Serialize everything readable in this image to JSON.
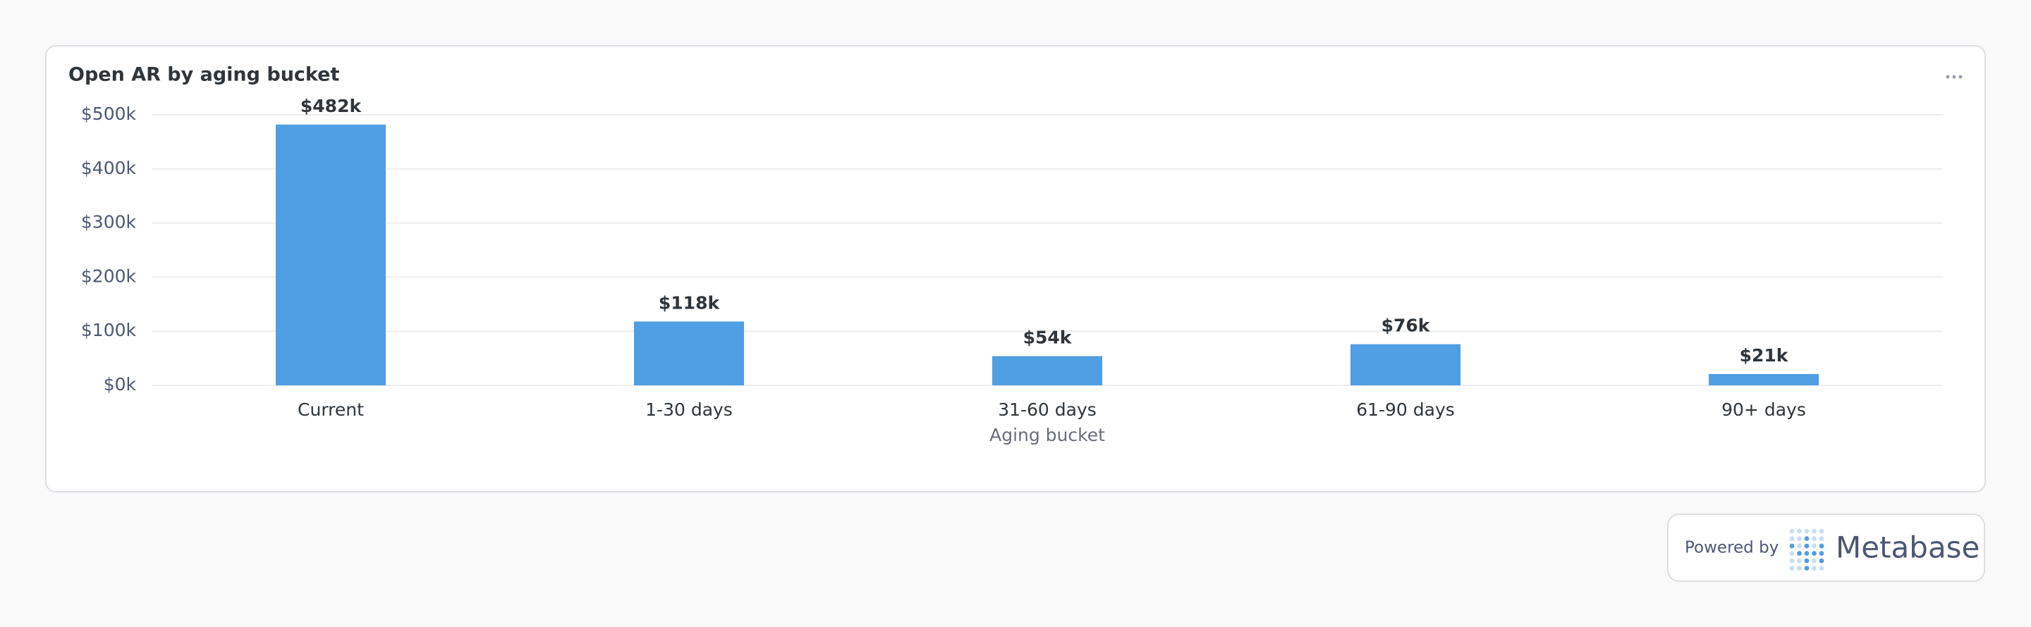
{
  "chart_data": {
    "type": "bar",
    "title": "Open AR by aging bucket",
    "categories": [
      "Current",
      "1-30 days",
      "31-60 days",
      "61-90 days",
      "90+ days"
    ],
    "values": [
      482000,
      118000,
      54000,
      76000,
      21000
    ],
    "value_labels": [
      "$482k",
      "$118k",
      "$54k",
      "$76k",
      "$21k"
    ],
    "color": "#509ee3",
    "x_label": "Aging bucket",
    "ylim": [
      0,
      500000
    ],
    "yticks": [
      {
        "value": 0,
        "label": "$0k"
      },
      {
        "value": 100000,
        "label": "$100k"
      },
      {
        "value": 200000,
        "label": "$200k"
      },
      {
        "value": 300000,
        "label": "$300k"
      },
      {
        "value": 400000,
        "label": "$400k"
      },
      {
        "value": 500000,
        "label": "$500k"
      }
    ],
    "grid": true
  },
  "footer": {
    "powered_by": "Powered by",
    "brand": "Metabase"
  }
}
